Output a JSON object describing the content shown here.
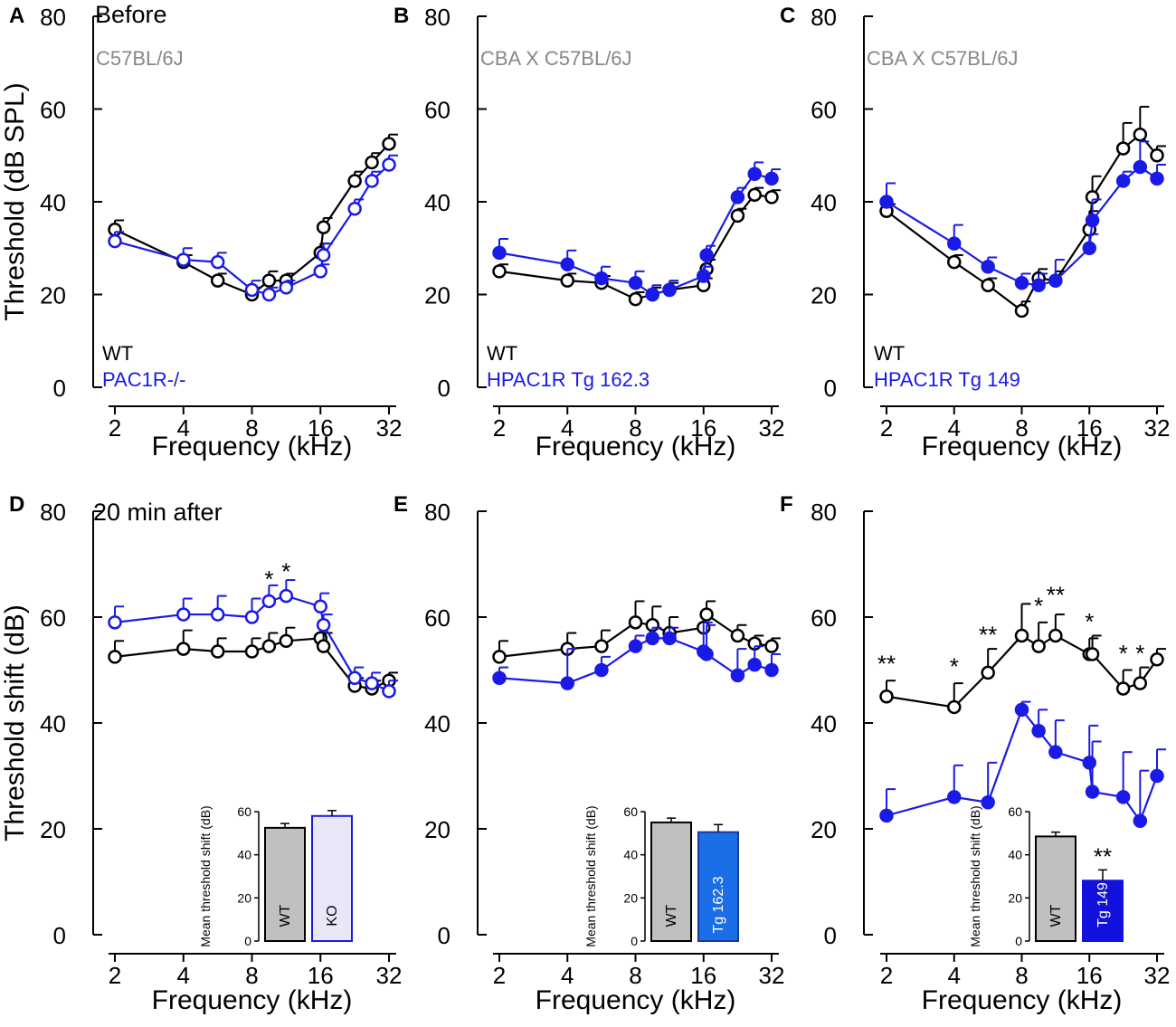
{
  "colors": {
    "wt": "#000000",
    "tg": "#1a1ae6",
    "note": "#888888"
  },
  "chart_data": [
    {
      "letter": "A",
      "type": "line",
      "header": "Before",
      "strain": "C57BL/6J",
      "ylabel": "Threshold (dB SPL)",
      "xlabel": "Frequency (kHz)",
      "xticks": [
        2,
        4,
        8,
        16,
        32
      ],
      "xlim": [
        2,
        32
      ],
      "ylim": [
        0,
        80
      ],
      "yticks": [
        0,
        20,
        40,
        60,
        80
      ],
      "legend": [
        "WT",
        "PAC1R-/-"
      ],
      "series": [
        {
          "name": "WT",
          "color": "wt",
          "filled": false,
          "x": [
            2,
            4,
            5.66,
            8,
            9.51,
            11.31,
            16,
            16.5,
            22.63,
            26.91,
            32
          ],
          "y": [
            34,
            27,
            23,
            20,
            23,
            23,
            29,
            34.5,
            44.5,
            48.5,
            52.5
          ],
          "err": [
            2,
            1.5,
            1.5,
            1.5,
            2,
            1.5,
            2,
            2,
            2,
            2,
            2
          ],
          "note": ""
        },
        {
          "name": "PAC1R-/-",
          "color": "tg",
          "filled": false,
          "x": [
            2,
            4,
            5.66,
            8,
            9.51,
            11.31,
            16,
            16.5,
            22.63,
            26.91,
            32
          ],
          "y": [
            31.5,
            27.5,
            27,
            21,
            20,
            21.5,
            25,
            28.5,
            38.5,
            44.5,
            48
          ],
          "err": [
            2,
            2.5,
            2,
            2,
            1.5,
            1.5,
            1.5,
            2.5,
            2,
            2,
            2
          ],
          "note": ""
        }
      ],
      "stars": []
    },
    {
      "letter": "B",
      "type": "line",
      "header": "",
      "strain": "CBA X C57BL/6J",
      "ylabel": "",
      "xlabel": "Frequency (kHz)",
      "xticks": [
        2,
        4,
        8,
        16,
        32
      ],
      "xlim": [
        2,
        32
      ],
      "ylim": [
        0,
        80
      ],
      "yticks": [
        0,
        20,
        40,
        60,
        80
      ],
      "legend": [
        "WT",
        "HPAC1R Tg 162.3"
      ],
      "series": [
        {
          "name": "WT",
          "color": "wt",
          "filled": false,
          "x": [
            2,
            4,
            5.66,
            8,
            9.51,
            11.31,
            16,
            16.5,
            22.63,
            26.91,
            32
          ],
          "y": [
            25,
            23,
            22.5,
            19,
            20,
            21,
            22,
            25.5,
            37,
            41.5,
            41
          ],
          "err": [
            1.5,
            1.5,
            1.5,
            1.5,
            1.5,
            1.5,
            1.5,
            2,
            1.5,
            1.5,
            1.5
          ],
          "note": ""
        },
        {
          "name": "HPAC1R Tg 162.3",
          "color": "tg",
          "filled": true,
          "x": [
            2,
            4,
            5.66,
            8,
            9.51,
            11.31,
            16,
            16.5,
            22.63,
            26.91,
            32
          ],
          "y": [
            29,
            26.5,
            23.5,
            22.5,
            20,
            21,
            24,
            28.5,
            41,
            46,
            45
          ],
          "err": [
            3,
            3,
            2.5,
            2.5,
            2,
            2,
            2,
            2,
            2,
            2.5,
            2
          ],
          "note": ""
        }
      ],
      "stars": []
    },
    {
      "letter": "C",
      "type": "line",
      "header": "",
      "strain": "CBA X C57BL/6J",
      "ylabel": "",
      "xlabel": "Frequency (kHz)",
      "xticks": [
        2,
        4,
        8,
        16,
        32
      ],
      "xlim": [
        2,
        32
      ],
      "ylim": [
        0,
        80
      ],
      "yticks": [
        0,
        20,
        40,
        60,
        80
      ],
      "legend": [
        "WT",
        "HPAC1R Tg 149"
      ],
      "series": [
        {
          "name": "WT",
          "color": "wt",
          "filled": false,
          "x": [
            2,
            4,
            5.66,
            8,
            9.51,
            11.31,
            16,
            16.5,
            22.63,
            26.91,
            32
          ],
          "y": [
            38,
            27,
            22,
            16.5,
            23.5,
            23,
            34,
            41,
            51.5,
            54.5,
            50
          ],
          "err": [
            1.5,
            1.5,
            1.5,
            2,
            2,
            2,
            4,
            4.5,
            5.5,
            6,
            2
          ],
          "note": ""
        },
        {
          "name": "HPAC1R Tg 149",
          "color": "tg",
          "filled": true,
          "x": [
            2,
            4,
            5.66,
            8,
            9.51,
            11.31,
            16,
            16.5,
            22.63,
            26.91,
            32
          ],
          "y": [
            40,
            31,
            26,
            22.5,
            22,
            23,
            30,
            36,
            44.5,
            47.5,
            45
          ],
          "err": [
            4,
            4,
            2,
            2,
            2.5,
            4.5,
            3,
            4.5,
            2,
            5.5,
            3
          ],
          "note": ""
        }
      ],
      "stars": []
    },
    {
      "letter": "D",
      "type": "line",
      "header": "20 min after",
      "strain": "",
      "ylabel": "Threshold shift (dB)",
      "xlabel": "Frequency (kHz)",
      "xticks": [
        2,
        4,
        8,
        16,
        32
      ],
      "xlim": [
        2,
        32
      ],
      "ylim": [
        0,
        80
      ],
      "yticks": [
        0,
        20,
        40,
        60,
        80
      ],
      "legend": [],
      "series": [
        {
          "name": "WT",
          "color": "wt",
          "filled": false,
          "x": [
            2,
            4,
            5.66,
            8,
            9.51,
            11.31,
            16,
            16.5,
            22.63,
            26.91,
            32
          ],
          "y": [
            52.5,
            54,
            53.5,
            53.5,
            54.5,
            55.5,
            56,
            54.5,
            47,
            46.5,
            48
          ],
          "err": [
            3,
            3.5,
            2.5,
            2.5,
            2.5,
            2.5,
            2.5,
            2.5,
            1.5,
            1.5,
            1.5
          ],
          "note": ""
        },
        {
          "name": "KO",
          "color": "tg",
          "filled": false,
          "x": [
            2,
            4,
            5.66,
            8,
            9.51,
            11.31,
            16,
            16.5,
            22.63,
            26.91,
            32
          ],
          "y": [
            59,
            60.5,
            60.5,
            60,
            63,
            64,
            62,
            58.5,
            48.5,
            47.5,
            46
          ],
          "err": [
            3,
            3,
            3.5,
            3.5,
            3,
            3,
            2.5,
            2,
            2,
            2,
            2
          ],
          "note": ""
        }
      ],
      "stars": [
        {
          "x": 9.51,
          "y": 67,
          "text": "*"
        },
        {
          "x": 11.31,
          "y": 68.5,
          "text": "*"
        }
      ],
      "inset": {
        "type": "bar",
        "ylabel": "Mean threshold shift (dB)",
        "ylim": [
          0,
          60
        ],
        "yticks": [
          0,
          20,
          40,
          60
        ],
        "categories": [
          "WT",
          "KO"
        ],
        "values": [
          52.5,
          58
        ],
        "err": [
          2,
          2.5
        ],
        "fills": [
          "#c0c0c0",
          "#e8e8f8"
        ],
        "strokes": [
          "#000000",
          "#1a1ae6"
        ],
        "label_colors": [
          "#000000",
          "#000000"
        ],
        "stars": ""
      }
    },
    {
      "letter": "E",
      "type": "line",
      "header": "",
      "strain": "",
      "ylabel": "",
      "xlabel": "Frequency (kHz)",
      "xticks": [
        2,
        4,
        8,
        16,
        32
      ],
      "xlim": [
        2,
        32
      ],
      "ylim": [
        0,
        80
      ],
      "yticks": [
        0,
        20,
        40,
        60,
        80
      ],
      "legend": [],
      "series": [
        {
          "name": "WT",
          "color": "wt",
          "filled": false,
          "x": [
            2,
            4,
            5.66,
            8,
            9.51,
            11.31,
            16,
            16.5,
            22.63,
            26.91,
            32
          ],
          "y": [
            52.5,
            54,
            54.5,
            59,
            58.5,
            57,
            58,
            60.5,
            56.5,
            55,
            54.5
          ],
          "err": [
            3,
            3,
            3,
            4,
            3.5,
            3,
            3,
            2.5,
            2,
            1.5,
            1.5
          ],
          "note": ""
        },
        {
          "name": "Tg 162.3",
          "color": "tg",
          "filled": true,
          "x": [
            2,
            4,
            5.66,
            8,
            9.51,
            11.31,
            16,
            16.5,
            22.63,
            26.91,
            32
          ],
          "y": [
            48.5,
            47.5,
            50,
            54.5,
            56,
            56,
            53.5,
            53,
            49,
            51,
            50
          ],
          "err": [
            2,
            6.5,
            2.5,
            2,
            2,
            2,
            5.5,
            5.5,
            5,
            3.5,
            3
          ],
          "note": ""
        }
      ],
      "stars": [],
      "inset": {
        "type": "bar",
        "ylabel": "Mean threshold shift (dB)",
        "ylim": [
          0,
          60
        ],
        "yticks": [
          0,
          20,
          40,
          60
        ],
        "categories": [
          "WT",
          "Tg 162.3"
        ],
        "values": [
          55,
          50.5
        ],
        "err": [
          2,
          3.5
        ],
        "fills": [
          "#c0c0c0",
          "#1a6ee6"
        ],
        "strokes": [
          "#000000",
          "#1a3a9a"
        ],
        "label_colors": [
          "#000000",
          "#ffffff"
        ],
        "stars": ""
      }
    },
    {
      "letter": "F",
      "type": "line",
      "header": "",
      "strain": "",
      "ylabel": "",
      "xlabel": "Frequency (kHz)",
      "xticks": [
        2,
        4,
        8,
        16,
        32
      ],
      "xlim": [
        2,
        32
      ],
      "ylim": [
        0,
        80
      ],
      "yticks": [
        0,
        20,
        40,
        60,
        80
      ],
      "legend": [],
      "series": [
        {
          "name": "WT",
          "color": "wt",
          "filled": false,
          "x": [
            2,
            4,
            5.66,
            8,
            9.51,
            11.31,
            16,
            16.5,
            22.63,
            26.91,
            32
          ],
          "y": [
            45,
            43,
            49.5,
            56.5,
            54.5,
            56.5,
            53,
            53,
            46.5,
            47.5,
            52
          ],
          "err": [
            3,
            4.5,
            4.5,
            6,
            4.5,
            4,
            3,
            3.5,
            3.5,
            3,
            2
          ],
          "note": ""
        },
        {
          "name": "Tg 149",
          "color": "tg",
          "filled": true,
          "x": [
            2,
            4,
            5.66,
            8,
            9.51,
            11.31,
            16,
            16.5,
            22.63,
            26.91,
            32
          ],
          "y": [
            22.5,
            26,
            25,
            42.5,
            38.5,
            34.5,
            32.5,
            27,
            26,
            21.5,
            30
          ],
          "err": [
            5,
            6,
            7.5,
            1.5,
            4,
            6,
            7,
            9.5,
            8.5,
            9.5,
            5
          ],
          "note": ""
        }
      ],
      "stars": [
        {
          "x": 2,
          "y": 51,
          "text": "**"
        },
        {
          "x": 4,
          "y": 50.5,
          "text": "*"
        },
        {
          "x": 5.66,
          "y": 56.5,
          "text": "**"
        },
        {
          "x": 9.51,
          "y": 62,
          "text": "*"
        },
        {
          "x": 11.31,
          "y": 64,
          "text": "**"
        },
        {
          "x": 16,
          "y": 59,
          "text": "*"
        },
        {
          "x": 22.63,
          "y": 53,
          "text": "*"
        },
        {
          "x": 26.91,
          "y": 53,
          "text": "*"
        }
      ],
      "inset": {
        "type": "bar",
        "ylabel": "Mean threshold shift (dB)",
        "ylim": [
          0,
          60
        ],
        "yticks": [
          0,
          20,
          40,
          60
        ],
        "categories": [
          "WT",
          "Tg 149"
        ],
        "values": [
          48.5,
          28
        ],
        "err": [
          2,
          5
        ],
        "fills": [
          "#c0c0c0",
          "#1212dc"
        ],
        "strokes": [
          "#000000",
          "#1212dc"
        ],
        "label_colors": [
          "#000000",
          "#ffffff"
        ],
        "stars": "**"
      }
    }
  ]
}
